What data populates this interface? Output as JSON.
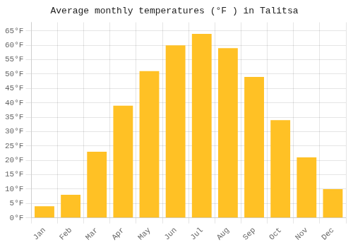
{
  "chart_data": {
    "type": "bar",
    "title": "Average monthly temperatures (°F ) in Talitsa",
    "categories": [
      "Jan",
      "Feb",
      "Mar",
      "Apr",
      "May",
      "Jun",
      "Jul",
      "Aug",
      "Sep",
      "Oct",
      "Nov",
      "Dec"
    ],
    "values": [
      4,
      8,
      23,
      39,
      51,
      60,
      64,
      59,
      49,
      34,
      21,
      10
    ],
    "color": "#FFC125",
    "ylim": [
      0,
      68
    ],
    "yticks": [
      {
        "value": 0,
        "label": "0°F"
      },
      {
        "value": 5,
        "label": "5°F"
      },
      {
        "value": 10,
        "label": "10°F"
      },
      {
        "value": 15,
        "label": "15°F"
      },
      {
        "value": 20,
        "label": "20°F"
      },
      {
        "value": 25,
        "label": "25°F"
      },
      {
        "value": 30,
        "label": "30°F"
      },
      {
        "value": 35,
        "label": "35°F"
      },
      {
        "value": 40,
        "label": "40°F"
      },
      {
        "value": 45,
        "label": "45°F"
      },
      {
        "value": 50,
        "label": "50°F"
      },
      {
        "value": 55,
        "label": "55°F"
      },
      {
        "value": 60,
        "label": "60°F"
      },
      {
        "value": 65,
        "label": "65°F"
      }
    ],
    "grid": true
  }
}
